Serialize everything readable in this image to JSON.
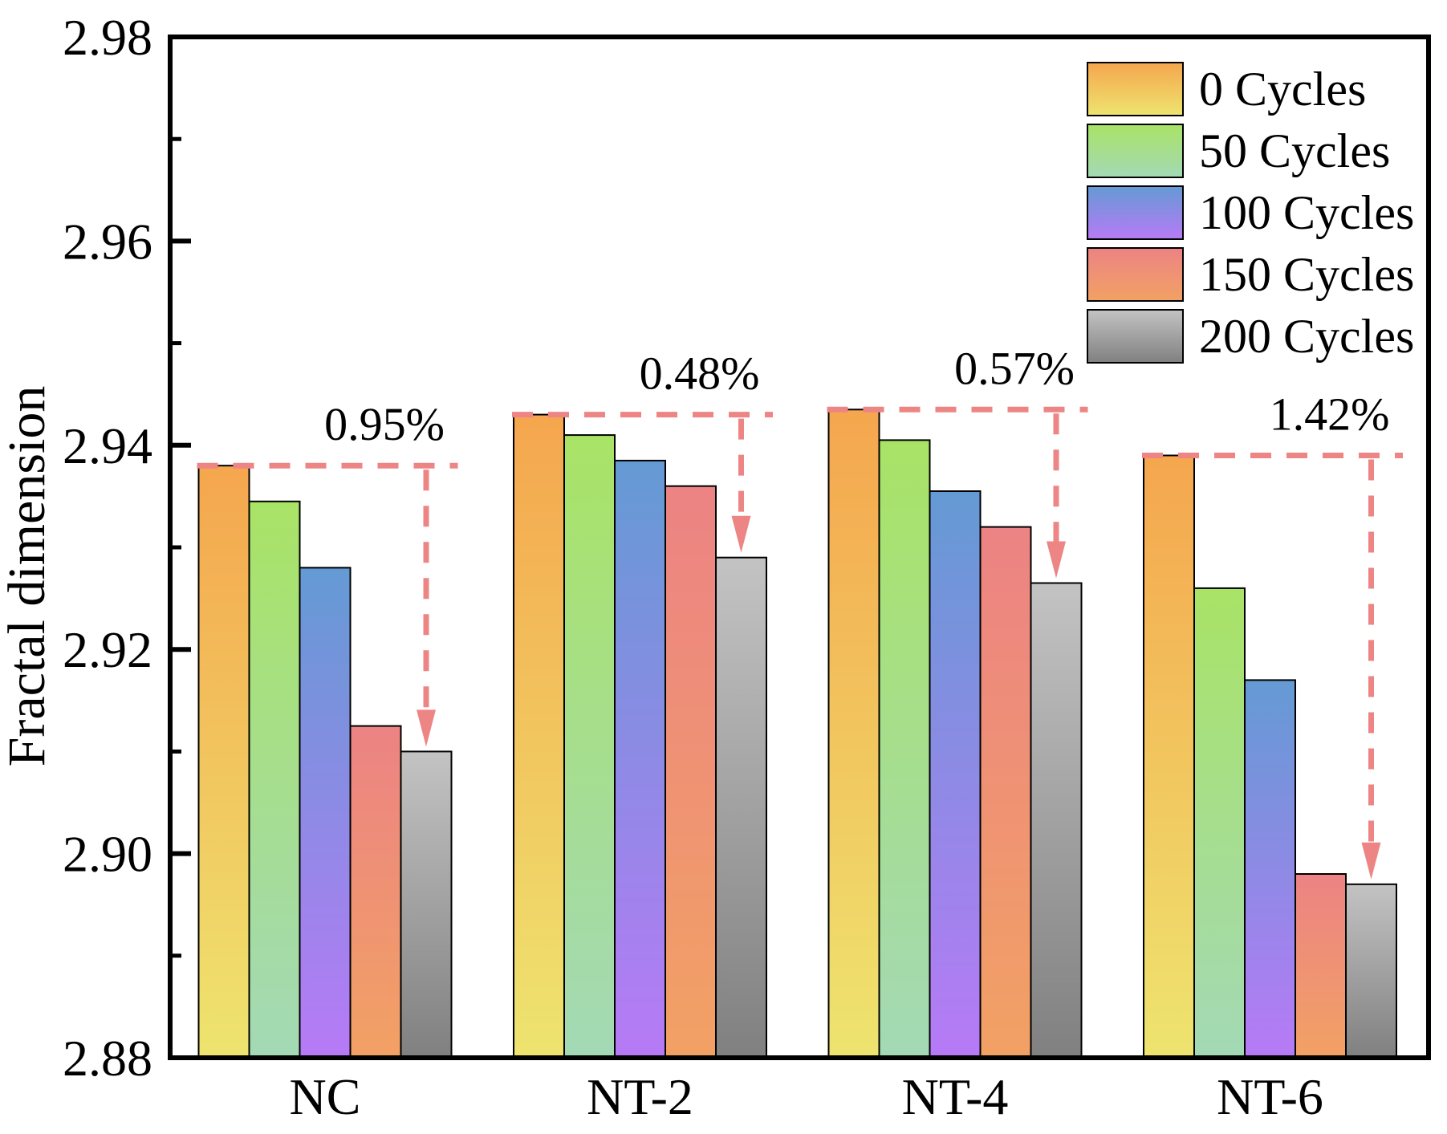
{
  "chart_data": {
    "type": "bar",
    "title": "",
    "xlabel": "",
    "ylabel": "Fractal dimension",
    "ylim": [
      2.88,
      2.98
    ],
    "y_major_ticks": [
      2.88,
      2.9,
      2.92,
      2.94,
      2.96,
      2.98
    ],
    "y_major_tick_labels": [
      "2.88",
      "2.90",
      "2.92",
      "2.94",
      "2.96",
      "2.98"
    ],
    "y_minor_ticks": [
      2.89,
      2.91,
      2.93,
      2.95,
      2.97
    ],
    "categories": [
      "NC",
      "NT-2",
      "NT-4",
      "NT-6"
    ],
    "series": [
      {
        "name": "0 Cycles",
        "color_top": "#F5A64E",
        "color_bottom": "#EEE46F",
        "values": [
          2.938,
          2.943,
          2.9435,
          2.939
        ]
      },
      {
        "name": "50 Cycles",
        "color_top": "#A9E366",
        "color_bottom": "#A3D9B5",
        "values": [
          2.9345,
          2.941,
          2.9405,
          2.926
        ]
      },
      {
        "name": "100 Cycles",
        "color_top": "#649AD4",
        "color_bottom": "#B77AF6",
        "values": [
          2.928,
          2.9385,
          2.9355,
          2.917
        ]
      },
      {
        "name": "150 Cycles",
        "color_top": "#EC8384",
        "color_bottom": "#F2A164",
        "values": [
          2.9125,
          2.936,
          2.932,
          2.898
        ]
      },
      {
        "name": "200 Cycles",
        "color_top": "#C3C3C3",
        "color_bottom": "#808080",
        "values": [
          2.91,
          2.929,
          2.9265,
          2.897
        ]
      }
    ],
    "annotations": [
      {
        "category": "NC",
        "label": "0.95%"
      },
      {
        "category": "NT-2",
        "label": "0.48%"
      },
      {
        "category": "NT-4",
        "label": "0.57%"
      },
      {
        "category": "NT-6",
        "label": "1.42%"
      }
    ],
    "annotation_color": "#ED8585",
    "axis_color": "#000000",
    "background": "#FFFFFF",
    "grid": false,
    "legend_position": "top-right"
  }
}
